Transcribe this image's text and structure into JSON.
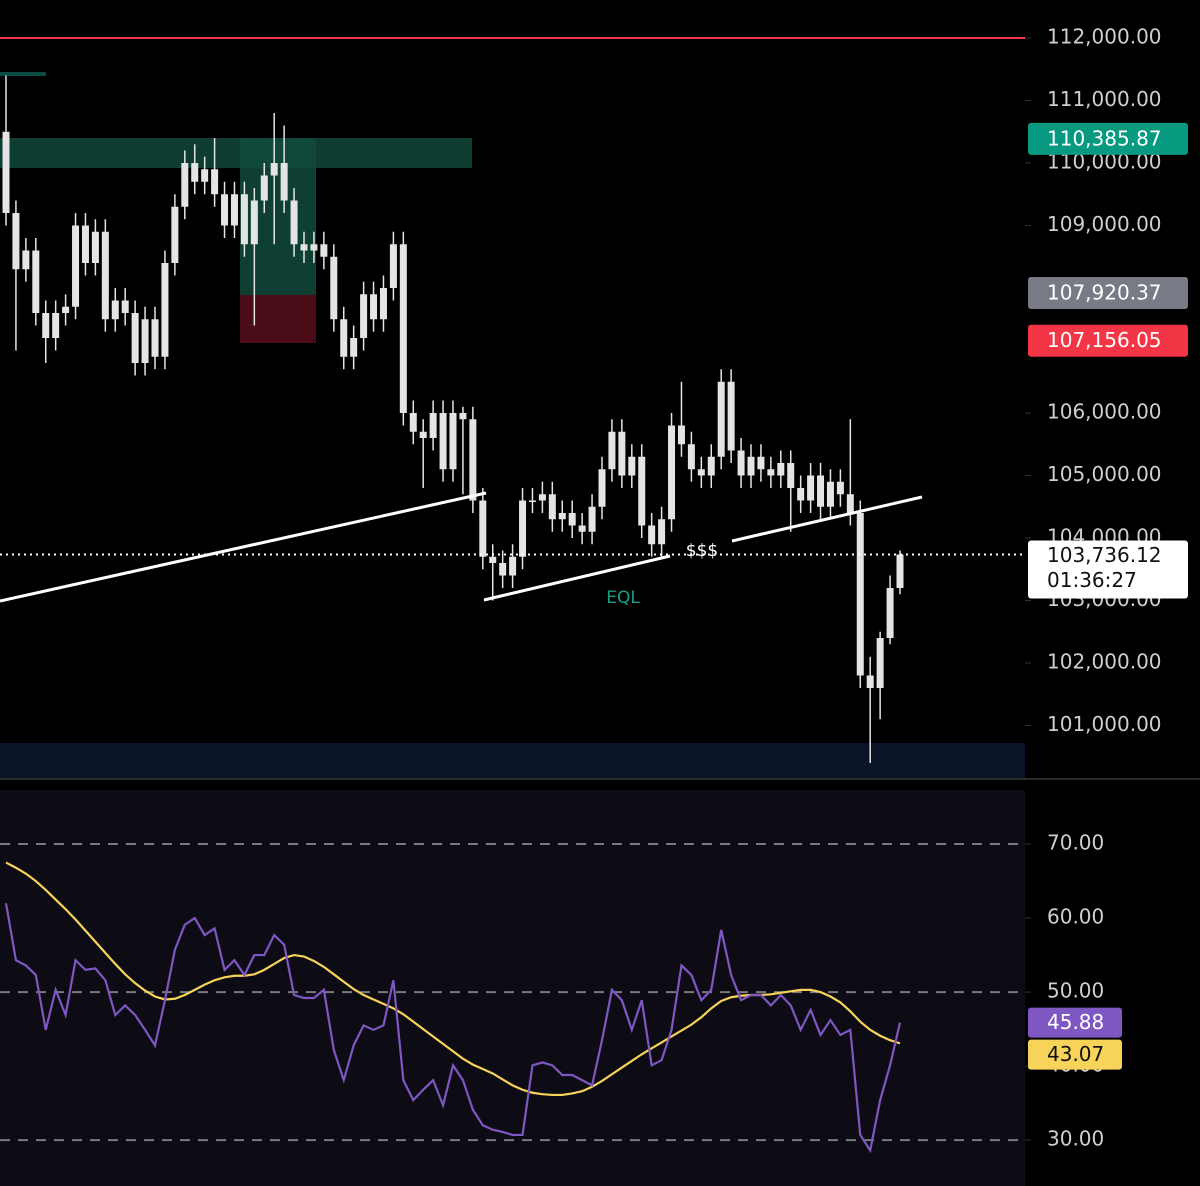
{
  "chart_data": [
    {
      "type": "candlestick",
      "color": "#e4e4e4",
      "open": [
        110500,
        109200,
        108300,
        108600,
        107600,
        107200,
        107600,
        107700,
        109000,
        108400,
        108900,
        107500,
        107800,
        107600,
        106800,
        107500,
        106900,
        108400,
        109300,
        110000,
        109700,
        109900,
        109500,
        109000,
        109500,
        108700,
        109400,
        109800,
        110000,
        109400,
        108700,
        108600,
        108700,
        108500,
        107500,
        106900,
        107200,
        107900,
        107500,
        108000,
        108700,
        106000,
        105700,
        105600,
        106000,
        105100,
        106000,
        105900,
        104600,
        103700,
        103600,
        103400,
        103700,
        104600,
        104600,
        104700,
        104300,
        104400,
        104200,
        104100,
        104500,
        105100,
        105700,
        105000,
        105300,
        104200,
        103900,
        104300,
        105800,
        105500,
        105100,
        105000,
        105300,
        106500,
        105400,
        105000,
        105300,
        105100,
        105000,
        105200,
        104800,
        104600,
        105000,
        104500,
        104900,
        104700,
        104400,
        101800,
        101600,
        102400,
        103200
      ],
      "high": [
        111400,
        109400,
        108800,
        108800,
        107800,
        107800,
        107900,
        109200,
        109200,
        109100,
        109100,
        108000,
        108000,
        107800,
        107700,
        107700,
        108600,
        109500,
        110200,
        110300,
        110100,
        110400,
        109700,
        109700,
        109700,
        109600,
        110000,
        110800,
        110600,
        109600,
        108900,
        108900,
        108900,
        108700,
        107700,
        107400,
        108100,
        108100,
        108200,
        108900,
        108900,
        106200,
        105900,
        106200,
        106200,
        106200,
        106100,
        106100,
        104800,
        103900,
        103800,
        103900,
        104800,
        104800,
        104900,
        104900,
        104600,
        104600,
        104400,
        104700,
        105300,
        105900,
        105900,
        105500,
        105500,
        104400,
        104500,
        106000,
        106500,
        105700,
        105300,
        105500,
        106700,
        106700,
        105600,
        105500,
        105500,
        105300,
        105400,
        105400,
        105000,
        105200,
        105200,
        105100,
        105100,
        105900,
        104600,
        102100,
        102500,
        103400,
        103800
      ],
      "low": [
        109000,
        107000,
        108100,
        107400,
        106800,
        107000,
        107400,
        107500,
        108200,
        108200,
        107300,
        107300,
        107400,
        106600,
        106600,
        106700,
        106700,
        108200,
        109100,
        109500,
        109500,
        109300,
        108800,
        108800,
        108500,
        107400,
        109200,
        108700,
        109200,
        108500,
        108400,
        108400,
        108300,
        107300,
        106700,
        106700,
        107000,
        107300,
        107300,
        107800,
        105800,
        105500,
        104800,
        105400,
        104900,
        104900,
        104700,
        104400,
        103500,
        103000,
        103200,
        103200,
        103500,
        104400,
        104400,
        104100,
        104100,
        104000,
        103900,
        103900,
        104300,
        104900,
        104800,
        104800,
        104000,
        103700,
        103700,
        104100,
        105300,
        104900,
        104800,
        104800,
        105100,
        105200,
        104800,
        104800,
        104900,
        104800,
        104800,
        104100,
        104400,
        104400,
        104300,
        104300,
        104500,
        104200,
        101600,
        100400,
        101100,
        102300,
        103100
      ],
      "close": [
        109200,
        108300,
        108600,
        107600,
        107200,
        107600,
        107700,
        109000,
        108400,
        108900,
        107500,
        107800,
        107600,
        106800,
        107500,
        106900,
        108400,
        109300,
        110000,
        109700,
        109900,
        109500,
        109000,
        109500,
        108700,
        109400,
        109800,
        110000,
        109400,
        108700,
        108600,
        108700,
        108500,
        107500,
        106900,
        107200,
        107900,
        107500,
        108000,
        108700,
        106000,
        105700,
        105600,
        106000,
        105100,
        106000,
        105900,
        104600,
        103700,
        103600,
        103400,
        103700,
        104600,
        104600,
        104700,
        104300,
        104400,
        104200,
        104100,
        104500,
        105100,
        105700,
        105000,
        105300,
        104200,
        103900,
        104300,
        105800,
        105500,
        105100,
        105000,
        105300,
        106500,
        105400,
        105000,
        105300,
        105100,
        105000,
        105200,
        104800,
        104600,
        105000,
        104500,
        104900,
        104700,
        104400,
        101800,
        101600,
        102400,
        103200,
        103736
      ],
      "ylim": [
        100160,
        112608
      ],
      "yticks": [
        {
          "value": 112000,
          "label": "112,000.00"
        },
        {
          "value": 111000,
          "label": "111,000.00"
        },
        {
          "value": 110000,
          "label": "110,000.00"
        },
        {
          "value": 109000,
          "label": "109,000.00"
        },
        {
          "value": 106000,
          "label": "106,000.00"
        },
        {
          "value": 105000,
          "label": "105,000.00"
        },
        {
          "value": 104000,
          "label": "104,000.00"
        },
        {
          "value": 103000,
          "label": "103,000.00"
        },
        {
          "value": 102000,
          "label": "102,000.00"
        },
        {
          "value": 101000,
          "label": "101,000.00"
        }
      ],
      "hline": {
        "value": 112000,
        "color": "#f23645"
      },
      "badges": [
        {
          "value": 110385.87,
          "label": "110,385.87",
          "color": "#089981"
        },
        {
          "value": 107920.37,
          "label": "107,920.37",
          "color": "#787b86"
        },
        {
          "value": 107156.05,
          "label": "107,156.05",
          "color": "#f23645"
        }
      ],
      "last_price": {
        "value": 103736.12,
        "label": "103,736.12",
        "countdown": "01:36:27"
      },
      "annotations": [
        "EQL",
        "$$$"
      ]
    },
    {
      "type": "line",
      "series": [
        {
          "color": "#7e57c2",
          "values": [
            62,
            54.3,
            53.6,
            52.3,
            44.9,
            50.3,
            46.9,
            54.3,
            53.0,
            53.2,
            51.6,
            46.9,
            48.2,
            46.9,
            44.9,
            42.8,
            48.9,
            55.7,
            59.1,
            60.0,
            57.7,
            58.6,
            53.0,
            54.3,
            52.3,
            55.0,
            55.0,
            57.7,
            56.4,
            49.6,
            49.2,
            49.2,
            50.3,
            42.2,
            38.1,
            42.8,
            45.5,
            44.9,
            45.5,
            51.6,
            38.1,
            35.4,
            36.8,
            38.1,
            34.7,
            40.1,
            38.1,
            34.1,
            32.0,
            31.4,
            31.1,
            30.7,
            30.7,
            40.1,
            40.5,
            40.1,
            38.8,
            38.8,
            38.1,
            37.4,
            43.5,
            50.3,
            48.9,
            44.9,
            48.9,
            40.1,
            40.8,
            44.9,
            53.6,
            52.3,
            48.9,
            50.3,
            58.4,
            52.3,
            48.9,
            49.6,
            49.6,
            48.2,
            49.6,
            48.2,
            44.9,
            47.6,
            44.2,
            46.2,
            44.2,
            44.9,
            30.7,
            28.6,
            35.4,
            40.1,
            45.88
          ],
          "last_label": "45.88"
        },
        {
          "color": "#f7d35a",
          "values": [
            67.5,
            66.8,
            66,
            65,
            63.8,
            62.5,
            61.2,
            59.8,
            58.3,
            56.8,
            55.3,
            53.8,
            52.4,
            51.2,
            50.2,
            49.4,
            49.0,
            49.1,
            49.6,
            50.3,
            51.0,
            51.6,
            52.0,
            52.2,
            52.2,
            52.4,
            53.0,
            53.8,
            54.6,
            55.0,
            54.8,
            54.2,
            53.4,
            52.4,
            51.4,
            50.4,
            49.6,
            49.0,
            48.4,
            47.8,
            47.0,
            46.0,
            45.0,
            44.0,
            43.0,
            42.0,
            41.0,
            40.2,
            39.6,
            39.0,
            38.2,
            37.4,
            36.8,
            36.4,
            36.2,
            36.1,
            36.1,
            36.3,
            36.6,
            37.2,
            38.0,
            38.9,
            39.8,
            40.7,
            41.6,
            42.4,
            43.2,
            44.0,
            44.8,
            45.6,
            46.6,
            47.8,
            48.8,
            49.3,
            49.5,
            49.6,
            49.6,
            49.7,
            49.9,
            50.1,
            50.3,
            50.3,
            50.0,
            49.4,
            48.6,
            47.4,
            46.0,
            44.9,
            44.1,
            43.5,
            43.07
          ],
          "last_label": "43.07"
        }
      ],
      "ylim": [
        23.8,
        77.3
      ],
      "yticks": [
        {
          "value": 70,
          "label": "70.00"
        },
        {
          "value": 60,
          "label": "60.00"
        },
        {
          "value": 50,
          "label": "50.00"
        },
        {
          "value": 40,
          "label": "40.00"
        },
        {
          "value": 30,
          "label": "30.00"
        }
      ],
      "levels": [
        70,
        50,
        30
      ]
    }
  ]
}
